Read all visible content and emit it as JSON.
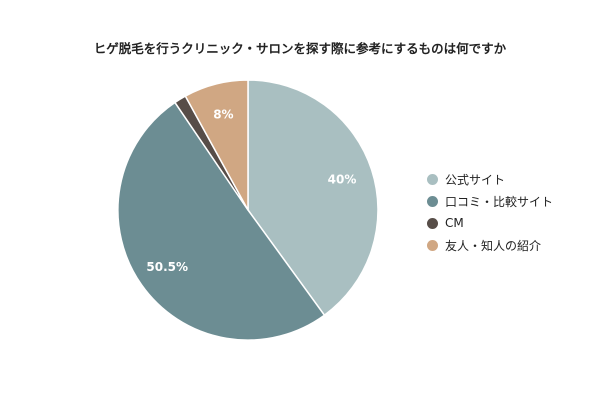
{
  "chart_data": {
    "type": "pie",
    "title": "ヒゲ脱毛を行うクリニック・サロンを探す際に参考にするものは何ですか",
    "slices": [
      {
        "label": "公式サイト",
        "value": 40,
        "value_label": "40%",
        "color": "#a9bfc1"
      },
      {
        "label": "口コミ・比較サイト",
        "value": 50.5,
        "value_label": "50.5%",
        "color": "#6c8d93"
      },
      {
        "label": "CM",
        "value": 1.5,
        "value_label": "",
        "color": "#574d48"
      },
      {
        "label": "友人・知人の紹介",
        "value": 8,
        "value_label": "8%",
        "color": "#d0a783"
      }
    ],
    "start_angle_deg": 0,
    "direction": "clockwise",
    "legend_position": "right"
  }
}
